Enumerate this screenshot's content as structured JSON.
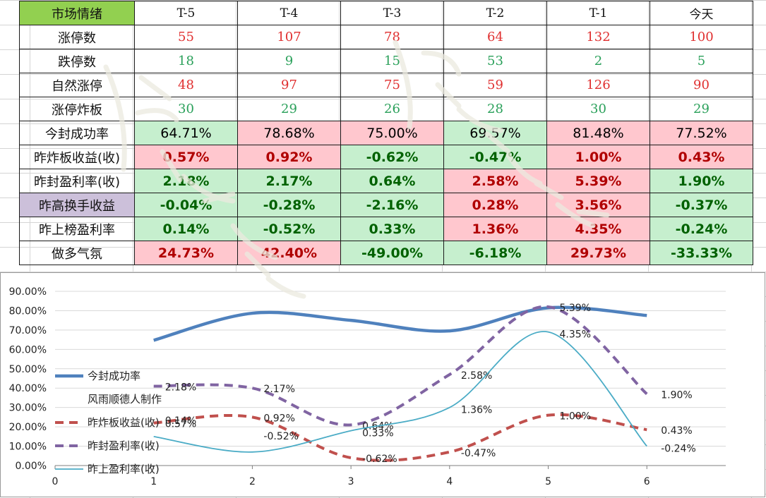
{
  "table": {
    "header_label": "市场情绪",
    "columns": [
      "T-5",
      "T-4",
      "T-3",
      "T-2",
      "T-1",
      "今天"
    ],
    "rows": [
      {
        "label": "涨停数",
        "values": [
          "55",
          "107",
          "78",
          "64",
          "132",
          "100"
        ]
      },
      {
        "label": "跌停数",
        "values": [
          "18",
          "9",
          "15",
          "53",
          "2",
          "5"
        ]
      },
      {
        "label": "自然涨停",
        "values": [
          "48",
          "97",
          "75",
          "59",
          "126",
          "90"
        ]
      },
      {
        "label": "涨停炸板",
        "values": [
          "30",
          "29",
          "26",
          "28",
          "30",
          "29"
        ]
      },
      {
        "label": "今封成功率",
        "values": [
          "64.71%",
          "78.68%",
          "75.00%",
          "69.57%",
          "81.48%",
          "77.52%"
        ]
      },
      {
        "label": "昨炸板收益(收)",
        "values": [
          "0.57%",
          "0.92%",
          "-0.62%",
          "-0.47%",
          "1.00%",
          "0.43%"
        ]
      },
      {
        "label": "昨封盈利率(收)",
        "values": [
          "2.18%",
          "2.17%",
          "0.64%",
          "2.58%",
          "5.39%",
          "1.90%"
        ]
      },
      {
        "label": "昨高换手收益",
        "values": [
          "-0.04%",
          "-0.28%",
          "-2.16%",
          "0.28%",
          "3.56%",
          "-0.37%"
        ]
      },
      {
        "label": "昨上榜盈利率",
        "values": [
          "0.14%",
          "-0.52%",
          "0.33%",
          "1.36%",
          "4.35%",
          "-0.24%"
        ]
      },
      {
        "label": "做多气氛",
        "values": [
          "24.73%",
          "42.40%",
          "-49.00%",
          "-6.18%",
          "29.73%",
          "-33.33%"
        ]
      }
    ],
    "colors": {
      "red_text": "#e03030",
      "green_text": "#2aa05a",
      "dark_red_text": "#b00000",
      "dark_green_text": "#006100",
      "pink_fill": "#ffc7ce",
      "green_fill": "#c6efce",
      "lavender_fill": "#ccc0da",
      "header_fill": "#92d050"
    }
  },
  "chart_data": {
    "type": "line",
    "x": [
      1,
      2,
      3,
      4,
      5,
      6
    ],
    "xlim": [
      0,
      6.8
    ],
    "x_ticks": [
      "0",
      "1",
      "2",
      "3",
      "4",
      "5",
      "6"
    ],
    "ylim": [
      0,
      90
    ],
    "y_ticks": [
      "0.00%",
      "10.00%",
      "20.00%",
      "30.00%",
      "40.00%",
      "50.00%",
      "60.00%",
      "70.00%",
      "80.00%",
      "90.00%"
    ],
    "grid": "horizontal",
    "legend_position": "left",
    "credit": "风雨顺德人制作",
    "series": [
      {
        "name": "今封成功率",
        "values": [
          64.71,
          78.68,
          75.0,
          69.57,
          81.48,
          77.52
        ],
        "color": "#4f81bd",
        "style": "solid-thick",
        "labels": []
      },
      {
        "name": "昨炸板收益(收)",
        "values": [
          22,
          25,
          4,
          7,
          26,
          18.5
        ],
        "color": "#c0504d",
        "style": "dashed",
        "labels": [
          "0.57%",
          "0.92%",
          "-0.62%",
          "-0.47%",
          "1.00%",
          "0.43%"
        ]
      },
      {
        "name": "昨封盈利率(收)",
        "values": [
          41,
          40,
          21,
          47,
          82,
          37
        ],
        "color": "#8064a2",
        "style": "dashed",
        "labels": [
          "2.18%",
          "2.17%",
          "0.64%",
          "2.58%",
          "5.39%",
          "1.90%"
        ]
      },
      {
        "name": "昨上盈利率(收)",
        "values": [
          15,
          7,
          18,
          30,
          69,
          10
        ],
        "color": "#4bacc6",
        "style": "thin",
        "labels": [
          "0.14%",
          "-0.52%",
          "0.33%",
          "1.36%",
          "4.35%",
          "-0.24%"
        ]
      }
    ]
  },
  "watermark_text": "风雨顺德人"
}
